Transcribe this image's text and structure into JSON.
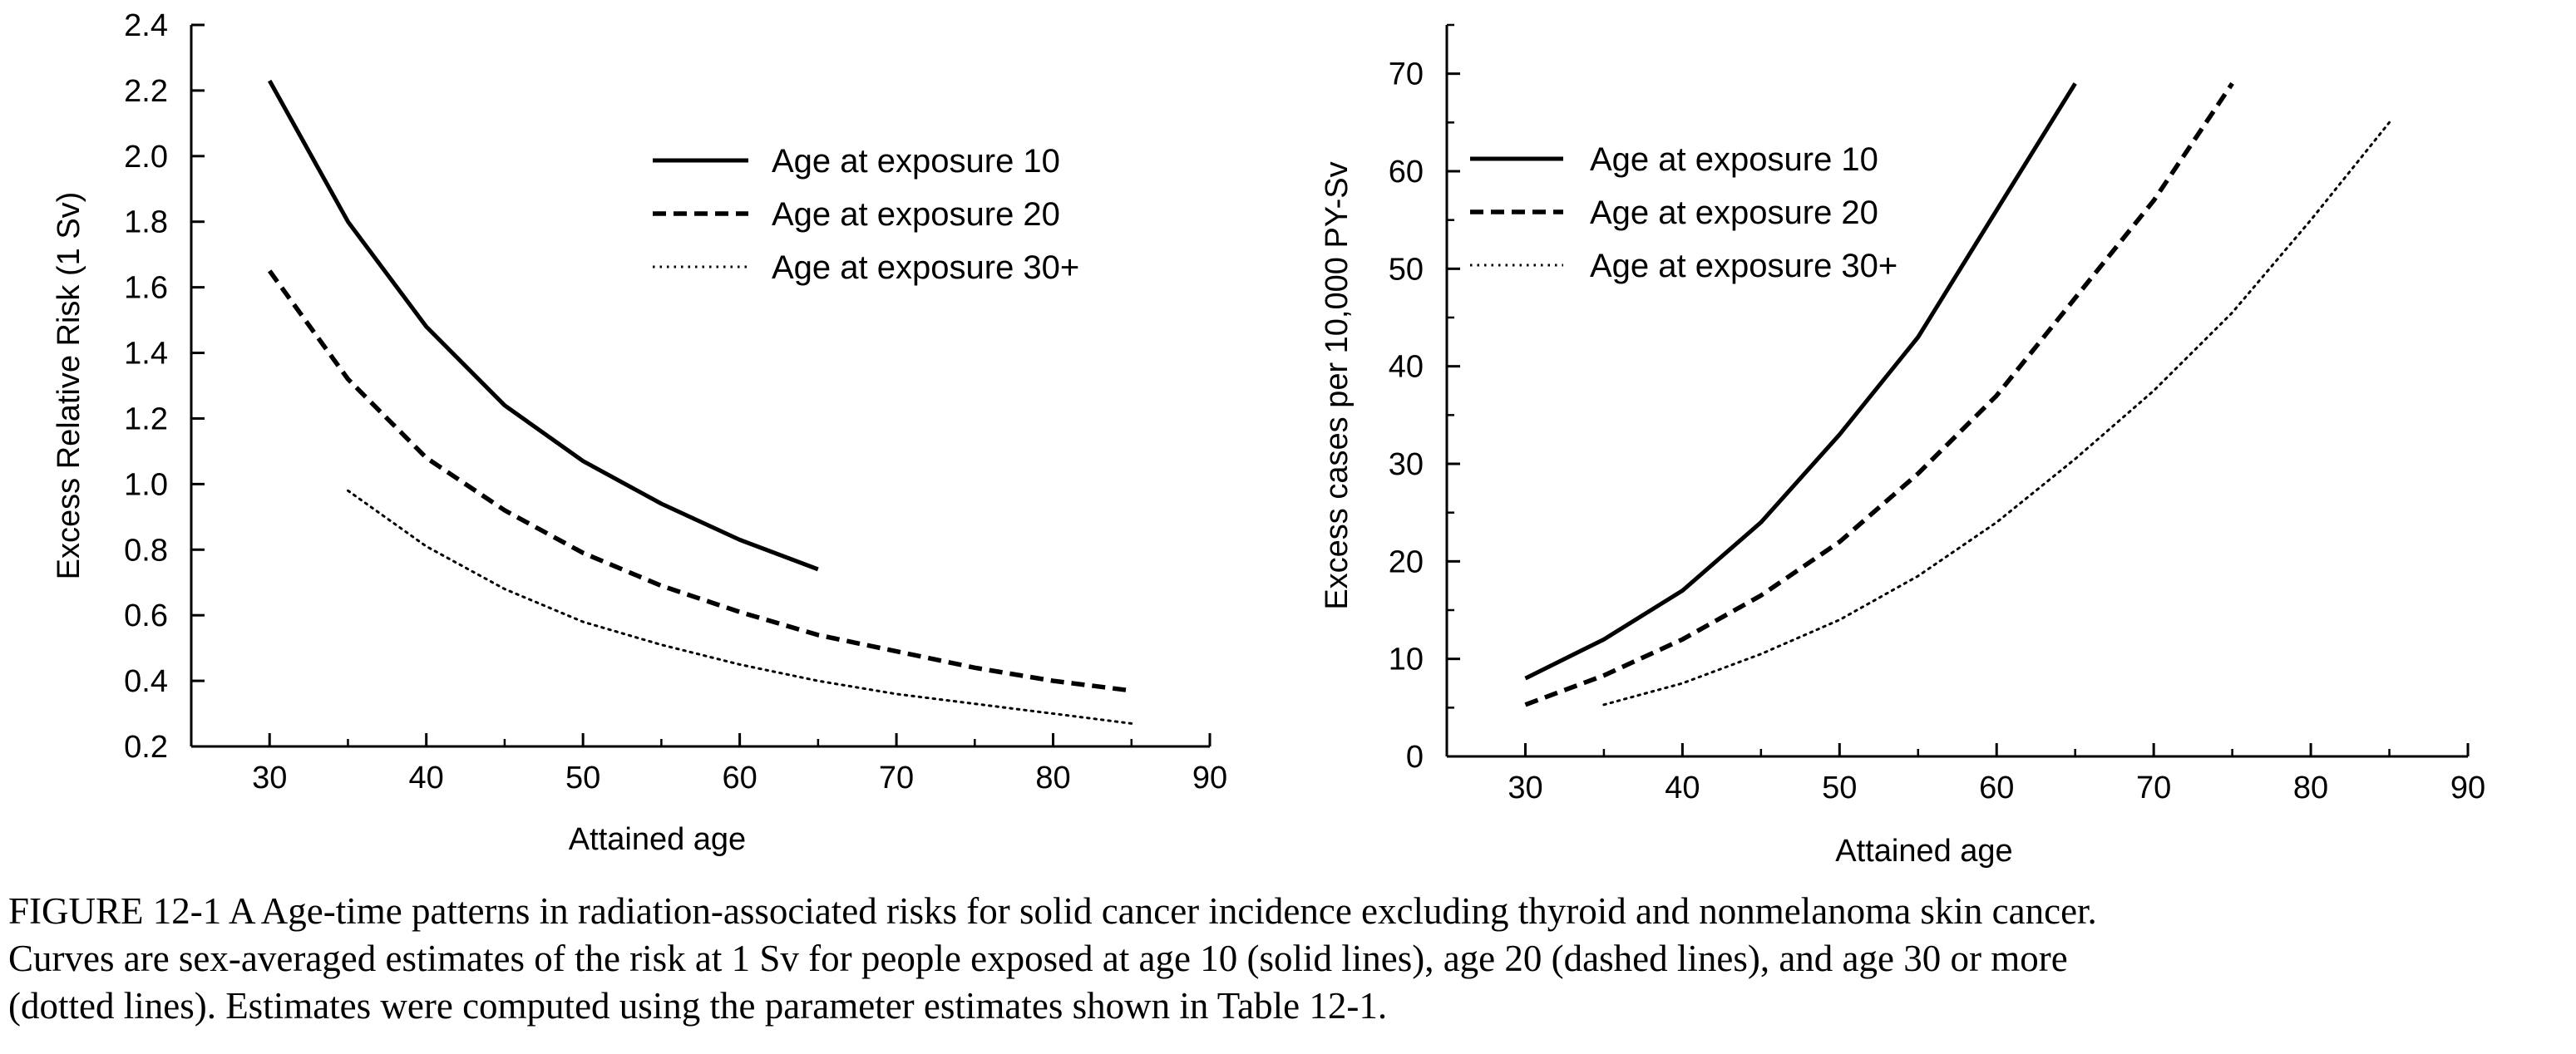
{
  "chart_data": [
    {
      "type": "line",
      "xlabel": "Attained age",
      "ylabel": "Excess Relative Risk (1 Sv)",
      "xlim": [
        25,
        90
      ],
      "ylim": [
        0.2,
        2.4
      ],
      "xticks": [
        "30",
        "40",
        "50",
        "60",
        "70",
        "80",
        "90"
      ],
      "yticks": [
        "0.2",
        "0.4",
        "0.6",
        "0.8",
        "1.0",
        "1.2",
        "1.4",
        "1.6",
        "1.8",
        "2.0",
        "2.2",
        "2.4"
      ],
      "legend_position": "top-right",
      "series": [
        {
          "name": "Age at exposure 10",
          "style": "solid",
          "x": [
            30,
            35,
            40,
            45,
            50,
            55,
            60,
            65
          ],
          "y": [
            2.23,
            1.8,
            1.48,
            1.24,
            1.07,
            0.94,
            0.83,
            0.74
          ]
        },
        {
          "name": "Age at exposure 20",
          "style": "dashed",
          "x": [
            30,
            35,
            40,
            45,
            50,
            55,
            60,
            65,
            70,
            75,
            80,
            85
          ],
          "y": [
            1.65,
            1.32,
            1.08,
            0.92,
            0.79,
            0.69,
            0.61,
            0.54,
            0.49,
            0.44,
            0.4,
            0.37
          ]
        },
        {
          "name": "Age at exposure 30+",
          "style": "dotted",
          "x": [
            35,
            40,
            45,
            50,
            55,
            60,
            65,
            70,
            75,
            80,
            85
          ],
          "y": [
            0.98,
            0.81,
            0.68,
            0.58,
            0.51,
            0.45,
            0.4,
            0.36,
            0.33,
            0.3,
            0.27
          ]
        }
      ]
    },
    {
      "type": "line",
      "xlabel": "Attained age",
      "ylabel": "Excess cases per 10,000 PY-Sv",
      "xlim": [
        25,
        90
      ],
      "ylim": [
        0,
        75
      ],
      "xticks": [
        "30",
        "40",
        "50",
        "60",
        "70",
        "80",
        "90"
      ],
      "yticks": [
        "0",
        "10",
        "20",
        "30",
        "40",
        "50",
        "60",
        "70"
      ],
      "legend_position": "top-left",
      "series": [
        {
          "name": "Age at exposure 10",
          "style": "solid",
          "x": [
            30,
            35,
            40,
            45,
            50,
            55,
            60,
            65
          ],
          "y": [
            8,
            12,
            17,
            24,
            33,
            43,
            56,
            69
          ]
        },
        {
          "name": "Age at exposure 20",
          "style": "dashed",
          "x": [
            30,
            35,
            40,
            45,
            50,
            55,
            60,
            65,
            70,
            75
          ],
          "y": [
            5.3,
            8.3,
            12,
            16.5,
            22,
            29,
            37,
            47,
            57,
            69
          ]
        },
        {
          "name": "Age at exposure 30+",
          "style": "dotted",
          "x": [
            35,
            40,
            45,
            50,
            55,
            60,
            65,
            70,
            75,
            80,
            85
          ],
          "y": [
            5.3,
            7.5,
            10.5,
            14,
            18.5,
            24,
            30.5,
            37.5,
            45.5,
            55,
            65
          ]
        }
      ]
    }
  ],
  "caption": {
    "line1": "FIGURE 12-1 A   Age-time patterns in radiation-associated risks for solid cancer incidence excluding thyroid and nonmelanoma skin cancer.",
    "line2": "Curves are sex-averaged estimates of the risk at 1 Sv for people exposed at age 10 (solid lines), age 20 (dashed lines), and age 30 or more",
    "line3": "(dotted lines). Estimates were computed using the parameter estimates shown in Table 12-1."
  }
}
